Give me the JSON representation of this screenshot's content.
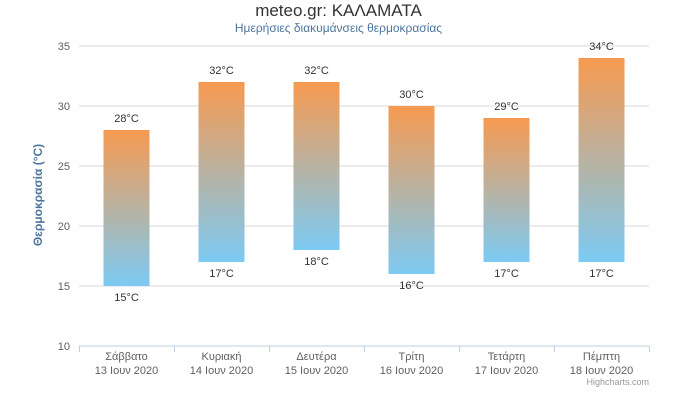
{
  "title": "meteo.gr: ΚΑΛΑΜΑΤΑ",
  "subtitle": "Ημερήσιες διακυμάνσεις θερμοκρασίας",
  "credits": "Highcharts.com",
  "colors": {
    "top": "#f79a50",
    "bottom": "#7ccaf3",
    "grid": "#d8d8d8",
    "axis": "#c0d0e0",
    "text": "#606060"
  },
  "chart_data": {
    "type": "bar",
    "subtype": "columnrange",
    "title": "meteo.gr: ΚΑΛΑΜΑΤΑ",
    "subtitle": "Ημερήσιες διακυμάνσεις θερμοκρασίας",
    "xlabel": "",
    "ylabel": "Θερμοκρασία (°C)",
    "ylim": [
      10,
      35
    ],
    "yticks": [
      10,
      15,
      20,
      25,
      30,
      35
    ],
    "grid": true,
    "categories": [
      [
        "Σάββατο",
        "13 Ιουν 2020"
      ],
      [
        "Κυριακή",
        "14 Ιουν 2020"
      ],
      [
        "Δευτέρα",
        "15 Ιουν 2020"
      ],
      [
        "Τρίτη",
        "16 Ιουν 2020"
      ],
      [
        "Τετάρτη",
        "17 Ιουν 2020"
      ],
      [
        "Πέμπτη",
        "18 Ιουν 2020"
      ]
    ],
    "low": [
      15,
      17,
      18,
      16,
      17,
      17
    ],
    "high": [
      28,
      32,
      32,
      30,
      29,
      34
    ],
    "low_labels": [
      "15°C",
      "17°C",
      "18°C",
      "16°C",
      "17°C",
      "17°C"
    ],
    "high_labels": [
      "28°C",
      "32°C",
      "32°C",
      "30°C",
      "29°C",
      "34°C"
    ]
  }
}
